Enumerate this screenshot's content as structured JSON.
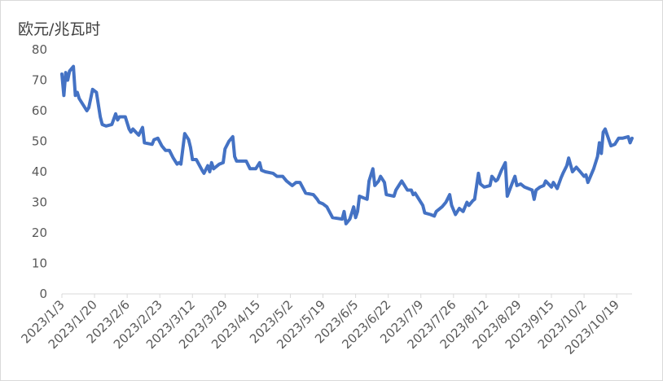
{
  "chart_data": {
    "type": "line",
    "y_label": "欧元/兆瓦时",
    "x": [
      "2023/1/3",
      "2023/1/4",
      "2023/1/5",
      "2023/1/6",
      "2023/1/7",
      "2023/1/9",
      "2023/1/10",
      "2023/1/11",
      "2023/1/12",
      "2023/1/14",
      "2023/1/16",
      "2023/1/17",
      "2023/1/19",
      "2023/1/21",
      "2023/1/23",
      "2023/1/24",
      "2023/1/26",
      "2023/1/29",
      "2023/1/31",
      "2023/2/1",
      "2023/2/2",
      "2023/2/5",
      "2023/2/7",
      "2023/2/8",
      "2023/2/9",
      "2023/2/12",
      "2023/2/14",
      "2023/2/15",
      "2023/2/19",
      "2023/2/20",
      "2023/2/22",
      "2023/2/24",
      "2023/2/26",
      "2023/2/28",
      "2023/3/2",
      "2023/3/4",
      "2023/3/5",
      "2023/3/6",
      "2023/3/8",
      "2023/3/10",
      "2023/3/11",
      "2023/3/12",
      "2023/3/14",
      "2023/3/17",
      "2023/3/18",
      "2023/3/20",
      "2023/3/21",
      "2023/3/22",
      "2023/3/23",
      "2023/3/26",
      "2023/3/28",
      "2023/3/29",
      "2023/3/31",
      "2023/4/2",
      "2023/4/3",
      "2023/4/4",
      "2023/4/9",
      "2023/4/11",
      "2023/4/14",
      "2023/4/16",
      "2023/4/17",
      "2023/4/19",
      "2023/4/23",
      "2023/4/25",
      "2023/4/28",
      "2023/4/30",
      "2023/5/3",
      "2023/5/5",
      "2023/5/7",
      "2023/5/10",
      "2023/5/14",
      "2023/5/16",
      "2023/5/17",
      "2023/5/19",
      "2023/5/21",
      "2023/5/24",
      "2023/5/29",
      "2023/5/30",
      "2023/5/31",
      "2023/6/2",
      "2023/6/3",
      "2023/6/4",
      "2023/6/5",
      "2023/6/6",
      "2023/6/7",
      "2023/6/11",
      "2023/6/12",
      "2023/6/14",
      "2023/6/15",
      "2023/6/17",
      "2023/6/18",
      "2023/6/20",
      "2023/6/21",
      "2023/6/25",
      "2023/6/26",
      "2023/6/29",
      "2023/7/2",
      "2023/7/4",
      "2023/7/5",
      "2023/7/6",
      "2023/7/8",
      "2023/7/10",
      "2023/7/11",
      "2023/7/14",
      "2023/7/16",
      "2023/7/17",
      "2023/7/20",
      "2023/7/22",
      "2023/7/24",
      "2023/7/25",
      "2023/7/27",
      "2023/7/29",
      "2023/7/31",
      "2023/8/2",
      "2023/8/3",
      "2023/8/5",
      "2023/8/6",
      "2023/8/8",
      "2023/8/9",
      "2023/8/11",
      "2023/8/14",
      "2023/8/15",
      "2023/8/17",
      "2023/8/18",
      "2023/8/20",
      "2023/8/22",
      "2023/8/23",
      "2023/8/26",
      "2023/8/27",
      "2023/8/28",
      "2023/8/30",
      "2023/9/1",
      "2023/9/3",
      "2023/9/5",
      "2023/9/6",
      "2023/9/7",
      "2023/9/9",
      "2023/9/11",
      "2023/9/12",
      "2023/9/15",
      "2023/9/16",
      "2023/9/18",
      "2023/9/20",
      "2023/9/21",
      "2023/9/23",
      "2023/9/24",
      "2023/9/26",
      "2023/9/28",
      "2023/9/30",
      "2023/10/2",
      "2023/10/3",
      "2023/10/4",
      "2023/10/7",
      "2023/10/9",
      "2023/10/10",
      "2023/10/11",
      "2023/10/12",
      "2023/10/13",
      "2023/10/16",
      "2023/10/18",
      "2023/10/20",
      "2023/10/22",
      "2023/10/25",
      "2023/10/26",
      "2023/10/27"
    ],
    "series": [
      {
        "color": "#4472c4",
        "values": [
          72,
          65,
          72.5,
          70,
          73,
          74.5,
          65,
          66,
          64,
          62,
          60,
          61,
          67,
          66,
          58,
          55.5,
          55,
          55.5,
          59,
          57,
          58,
          58,
          54,
          53,
          54,
          52,
          54.5,
          49.5,
          49,
          50.5,
          51,
          48.5,
          47,
          47,
          44.5,
          42.5,
          43,
          42.5,
          52.5,
          50.5,
          48,
          44,
          44,
          40.5,
          39.5,
          42,
          40,
          43,
          41,
          42.5,
          43,
          47.5,
          50,
          51.5,
          45,
          43.5,
          43.5,
          41,
          41,
          43,
          40.5,
          40,
          39.5,
          38.5,
          38.5,
          37,
          35.5,
          36.5,
          36.5,
          33,
          32.5,
          31,
          30,
          29.5,
          28.5,
          25,
          24.5,
          27,
          23,
          24.5,
          26.5,
          28.5,
          25,
          27,
          32,
          31,
          37,
          41,
          35.5,
          37,
          38.5,
          36.5,
          32.5,
          32,
          34,
          37,
          34,
          34,
          32.5,
          33,
          31,
          29,
          26.5,
          26,
          25.5,
          27,
          28.5,
          30,
          32.5,
          29,
          26,
          28,
          27,
          30,
          29,
          30.5,
          31,
          39.5,
          36,
          35,
          35.5,
          38.5,
          37,
          37.5,
          40.5,
          43,
          32,
          37,
          38.5,
          35.5,
          36,
          35,
          34.5,
          34,
          31,
          34,
          35,
          35.5,
          37,
          35,
          36.5,
          34.5,
          38,
          39.5,
          42,
          44.5,
          40,
          41.5,
          40,
          38.5,
          39,
          36.5,
          41,
          45,
          49.5,
          46,
          53,
          54,
          48.5,
          49,
          51,
          51,
          51.5,
          49.5,
          51
        ]
      }
    ],
    "xlim": [
      "2023/1/3",
      "2023/10/27"
    ],
    "xticks": [
      "2023/1/3",
      "2023/1/20",
      "2023/2/6",
      "2023/2/23",
      "2023/3/12",
      "2023/3/29",
      "2023/4/15",
      "2023/5/2",
      "2023/5/19",
      "2023/6/5",
      "2023/6/22",
      "2023/7/9",
      "2023/7/26",
      "2023/8/12",
      "2023/8/29",
      "2023/9/15",
      "2023/10/2",
      "2023/10/19"
    ],
    "ylim": [
      0,
      80
    ],
    "yticks": [
      0,
      10,
      20,
      30,
      40,
      50,
      60,
      70,
      80
    ],
    "grid": false
  }
}
